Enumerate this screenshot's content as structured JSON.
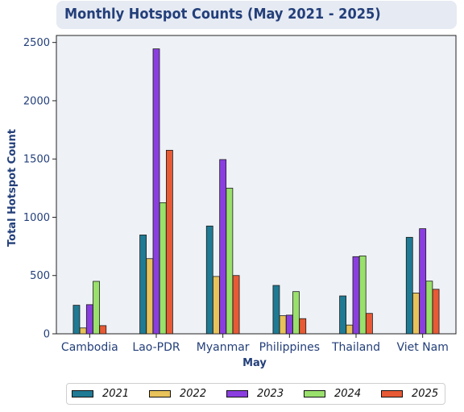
{
  "chart_data": {
    "type": "bar",
    "title": "Monthly Hotspot Counts (May 2021 - 2025)",
    "xlabel": "May",
    "ylabel": "Total Hotspot Count",
    "ylim": [
      0,
      2560
    ],
    "yticks": [
      0,
      500,
      1000,
      1500,
      2000,
      2500
    ],
    "grid": false,
    "legend_position": "bottom",
    "categories": [
      "Cambodia",
      "Lao-PDR",
      "Myanmar",
      "Philippines",
      "Thailand",
      "Viet Nam"
    ],
    "series": [
      {
        "name": "2021",
        "color": "#1f7a94",
        "values": [
          245,
          848,
          925,
          415,
          325,
          828
        ]
      },
      {
        "name": "2022",
        "color": "#e8c25a",
        "values": [
          50,
          645,
          492,
          155,
          75,
          350
        ]
      },
      {
        "name": "2023",
        "color": "#8b3ee0",
        "values": [
          250,
          2445,
          1495,
          160,
          662,
          902
        ]
      },
      {
        "name": "2024",
        "color": "#9ae06c",
        "values": [
          450,
          1125,
          1250,
          362,
          668,
          452
        ]
      },
      {
        "name": "2025",
        "color": "#e75a35",
        "values": [
          70,
          1575,
          500,
          130,
          175,
          382
        ]
      }
    ]
  },
  "colors": {
    "title_text": "#233f7a",
    "title_background": "#e6eaf2",
    "plot_background": "#eef1f6",
    "axis_text": "#233f7a"
  }
}
